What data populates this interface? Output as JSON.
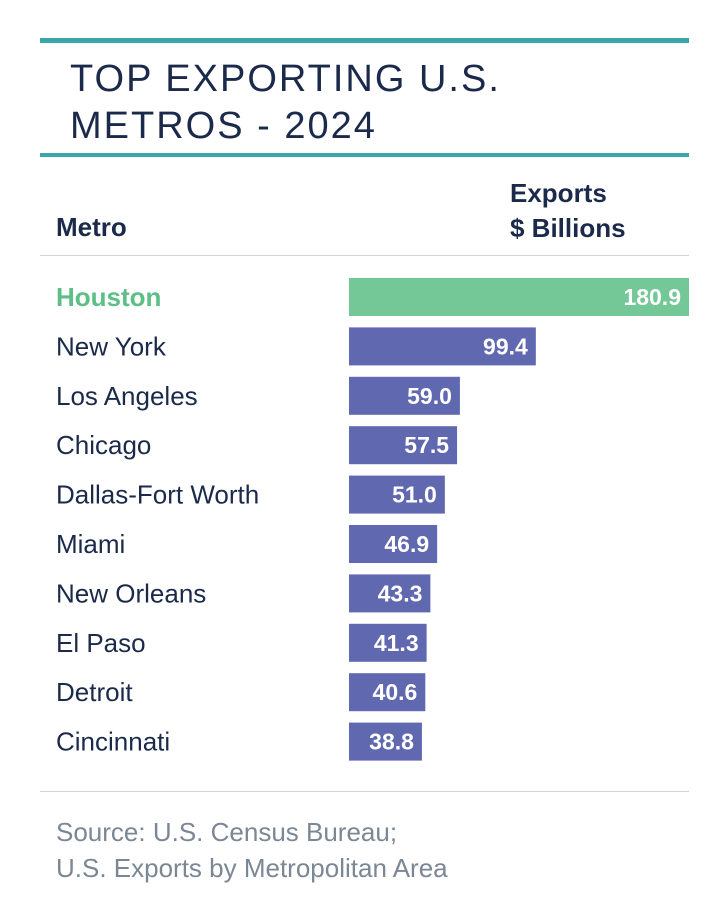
{
  "header": {
    "title_line1": "TOP EXPORTING U.S.",
    "title_line2": "METROS - 2024",
    "col_metro": "Metro",
    "col_exports_line1": "Exports",
    "col_exports_line2": "$ Billions"
  },
  "colors": {
    "accent": "#3aa6a8",
    "highlight_bar": "#74c796",
    "highlight_text": "#5cbf86",
    "bar": "#6068b0",
    "text": "#1b2a4a",
    "source": "#7b8794"
  },
  "chart_data": {
    "type": "bar",
    "orientation": "horizontal",
    "title": "TOP EXPORTING U.S. METROS - 2024",
    "xlabel": "Exports $ Billions",
    "ylabel": "Metro",
    "categories": [
      "Houston",
      "New York",
      "Los Angeles",
      "Chicago",
      "Dallas-Fort Worth",
      "Miami",
      "New Orleans",
      "El Paso",
      "Detroit",
      "Cincinnati"
    ],
    "values": [
      180.9,
      99.4,
      59.0,
      57.5,
      51.0,
      46.9,
      43.3,
      41.3,
      40.6,
      38.8
    ],
    "value_labels": [
      "180.9",
      "99.4",
      "59.0",
      "57.5",
      "51.0",
      "46.9",
      "43.3",
      "41.3",
      "40.6",
      "38.8"
    ],
    "highlight": "Houston",
    "xlim": [
      0,
      180.9
    ]
  },
  "source": {
    "line1": "Source: U.S. Census Bureau;",
    "line2": "U.S. Exports by Metropolitan Area"
  }
}
